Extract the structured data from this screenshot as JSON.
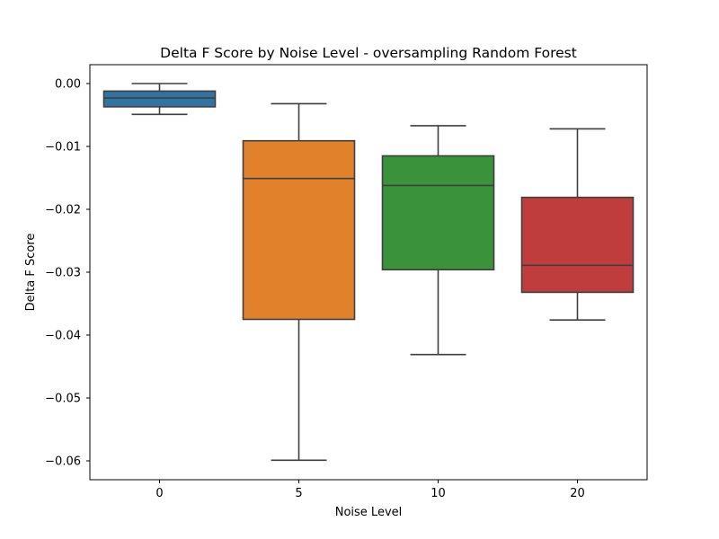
{
  "chart_data": {
    "type": "box",
    "title": "Delta F Score by Noise Level - oversampling Random Forest",
    "xlabel": "Noise Level",
    "ylabel": "Delta F Score",
    "categories": [
      "0",
      "5",
      "10",
      "20"
    ],
    "ylim": [
      -0.063,
      0.003
    ],
    "yticks": [
      0.0,
      -0.01,
      -0.02,
      -0.03,
      -0.04,
      -0.05,
      -0.06
    ],
    "ytick_labels": [
      "0.00",
      "−0.01",
      "−0.02",
      "−0.03",
      "−0.04",
      "−0.05",
      "−0.06"
    ],
    "grid": false,
    "boxes": [
      {
        "category": "0",
        "whisker_low": -0.0049,
        "q1": -0.0037,
        "median": -0.0023,
        "q3": -0.0012,
        "whisker_high": 0.0,
        "color": "#3274a1"
      },
      {
        "category": "5",
        "whisker_low": -0.0599,
        "q1": -0.0375,
        "median": -0.0151,
        "q3": -0.0091,
        "whisker_high": -0.0032,
        "color": "#e1812c"
      },
      {
        "category": "10",
        "whisker_low": -0.0431,
        "q1": -0.0296,
        "median": -0.0162,
        "q3": -0.0115,
        "whisker_high": -0.0067,
        "color": "#3a923a"
      },
      {
        "category": "20",
        "whisker_low": -0.0376,
        "q1": -0.0332,
        "median": -0.0289,
        "q3": -0.0181,
        "whisker_high": -0.0072,
        "color": "#c03d3e"
      }
    ]
  }
}
